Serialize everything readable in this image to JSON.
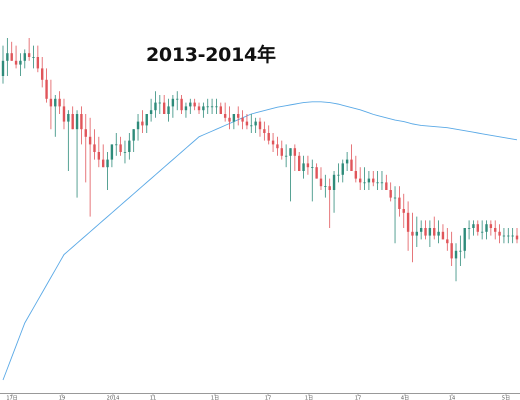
{
  "chart_data": {
    "type": "candlestick",
    "title": "2013-2014年",
    "xlabel": "",
    "ylabel": "",
    "ylim": [
      0,
      100
    ],
    "x_tick_labels": [
      "17日",
      "19",
      "2014",
      "11",
      "1日",
      "17",
      "1日",
      "17",
      "4日",
      "14",
      "5日"
    ],
    "grid": false,
    "colors": {
      "up": "#2e8b7a",
      "down": "#e0555a",
      "moving_average": "#5aa9e6",
      "axis": "#999999"
    },
    "series": [
      {
        "kind": "ohlc",
        "opens": [
          80,
          84,
          86,
          84,
          83,
          84,
          86,
          85,
          85,
          82,
          79,
          74,
          72,
          74,
          72,
          68,
          70,
          66,
          70,
          66,
          64,
          62,
          60,
          58,
          56,
          58,
          62,
          62,
          60,
          60,
          63,
          66,
          68,
          67,
          70,
          71,
          73,
          73,
          70,
          72,
          74,
          74,
          71,
          72,
          73,
          72,
          71,
          72,
          72,
          72,
          72,
          70,
          69,
          68,
          70,
          69,
          68,
          67,
          67,
          68,
          66,
          65,
          63,
          62,
          61,
          59,
          59,
          61,
          59,
          55,
          57,
          56,
          56,
          53,
          51,
          51,
          50,
          54,
          54,
          57,
          58,
          55,
          53,
          52,
          52,
          53,
          52,
          52,
          52,
          50,
          48,
          48,
          45,
          44,
          39,
          38,
          39,
          40,
          38,
          40,
          38,
          39,
          37,
          36,
          32,
          34,
          34,
          40,
          40,
          41,
          39,
          39,
          41,
          40,
          39,
          38,
          38,
          38,
          38
        ],
        "highs": [
          88,
          90,
          89,
          88,
          86,
          87,
          90,
          88,
          88,
          85,
          82,
          79,
          75,
          76,
          74,
          71,
          72,
          71,
          72,
          70,
          69,
          66,
          64,
          62,
          60,
          62,
          65,
          64,
          63,
          65,
          66,
          70,
          71,
          70,
          74,
          76,
          75,
          75,
          74,
          75,
          76,
          75,
          73,
          74,
          74,
          73,
          73,
          74,
          74,
          74,
          73,
          73,
          72,
          70,
          72,
          71,
          70,
          70,
          69,
          69,
          68,
          67,
          65,
          64,
          63,
          62,
          61,
          62,
          60,
          59,
          59,
          58,
          57,
          56,
          54,
          53,
          55,
          57,
          58,
          60,
          62,
          59,
          56,
          56,
          55,
          55,
          55,
          55,
          54,
          52,
          51,
          51,
          49,
          47,
          44,
          43,
          42,
          42,
          42,
          43,
          42,
          41,
          40,
          39,
          36,
          38,
          38,
          42,
          42,
          42,
          42,
          42,
          42,
          42,
          41,
          40,
          40,
          40,
          40
        ],
        "lows": [
          78,
          80,
          84,
          82,
          80,
          82,
          84,
          82,
          81,
          77,
          73,
          66,
          64,
          70,
          66,
          55,
          66,
          48,
          62,
          52,
          43,
          58,
          56,
          56,
          50,
          56,
          59,
          59,
          57,
          58,
          60,
          63,
          65,
          65,
          68,
          69,
          70,
          71,
          68,
          69,
          71,
          70,
          69,
          70,
          71,
          70,
          69,
          70,
          70,
          70,
          70,
          68,
          66,
          66,
          67,
          66,
          66,
          65,
          65,
          64,
          63,
          62,
          60,
          59,
          58,
          56,
          47,
          55,
          55,
          53,
          54,
          47,
          53,
          50,
          48,
          40,
          44,
          52,
          52,
          55,
          55,
          52,
          50,
          50,
          50,
          51,
          50,
          50,
          50,
          47,
          36,
          43,
          40,
          34,
          31,
          35,
          37,
          37,
          35,
          37,
          36,
          37,
          34,
          30,
          26,
          30,
          32,
          37,
          38,
          38,
          37,
          37,
          38,
          37,
          36,
          36,
          36,
          36,
          36
        ],
        "closes": [
          84,
          86,
          84,
          83,
          84,
          86,
          85,
          85,
          82,
          79,
          74,
          72,
          74,
          72,
          68,
          70,
          66,
          70,
          66,
          64,
          62,
          60,
          58,
          56,
          58,
          62,
          62,
          60,
          60,
          63,
          66,
          68,
          67,
          70,
          71,
          73,
          73,
          70,
          72,
          74,
          74,
          71,
          72,
          73,
          72,
          71,
          72,
          72,
          72,
          72,
          70,
          69,
          68,
          70,
          69,
          68,
          67,
          67,
          68,
          66,
          65,
          63,
          62,
          61,
          59,
          59,
          61,
          59,
          55,
          57,
          56,
          56,
          53,
          51,
          51,
          50,
          54,
          54,
          57,
          58,
          55,
          53,
          52,
          52,
          53,
          52,
          52,
          52,
          50,
          48,
          48,
          45,
          44,
          39,
          38,
          39,
          40,
          38,
          40,
          38,
          39,
          37,
          36,
          32,
          34,
          34,
          40,
          40,
          41,
          39,
          39,
          41,
          40,
          39,
          38,
          38,
          38,
          38,
          37
        ]
      },
      {
        "kind": "moving_average",
        "values": [
          0,
          3,
          6,
          9,
          12,
          15,
          17,
          19,
          21,
          23,
          25,
          27,
          29,
          31,
          33,
          34,
          35,
          36,
          37,
          38,
          39,
          40,
          41,
          42,
          43,
          44,
          45,
          46,
          47,
          48,
          49,
          50,
          51,
          52,
          53,
          54,
          55,
          56,
          57,
          58,
          59,
          60,
          61,
          62,
          63,
          64,
          64.5,
          65,
          65.5,
          66,
          66.5,
          67,
          67.5,
          68,
          68.5,
          69,
          69.5,
          70,
          70.3,
          70.6,
          70.9,
          71.2,
          71.5,
          71.8,
          72,
          72.2,
          72.4,
          72.6,
          72.8,
          73,
          73.1,
          73.2,
          73.2,
          73.2,
          73.1,
          73,
          72.8,
          72.6,
          72.3,
          72,
          71.7,
          71.4,
          71.1,
          70.7,
          70.3,
          69.9,
          69.6,
          69.3,
          69,
          68.7,
          68.4,
          68.2,
          68,
          67.7,
          67.4,
          67.2,
          67,
          66.9,
          66.8,
          66.7,
          66.6,
          66.5,
          66.4,
          66.2,
          66,
          65.8,
          65.6,
          65.4,
          65.2,
          65,
          64.8,
          64.6,
          64.4,
          64.2,
          64,
          63.8,
          63.6,
          63.4,
          63.2
        ]
      }
    ]
  }
}
